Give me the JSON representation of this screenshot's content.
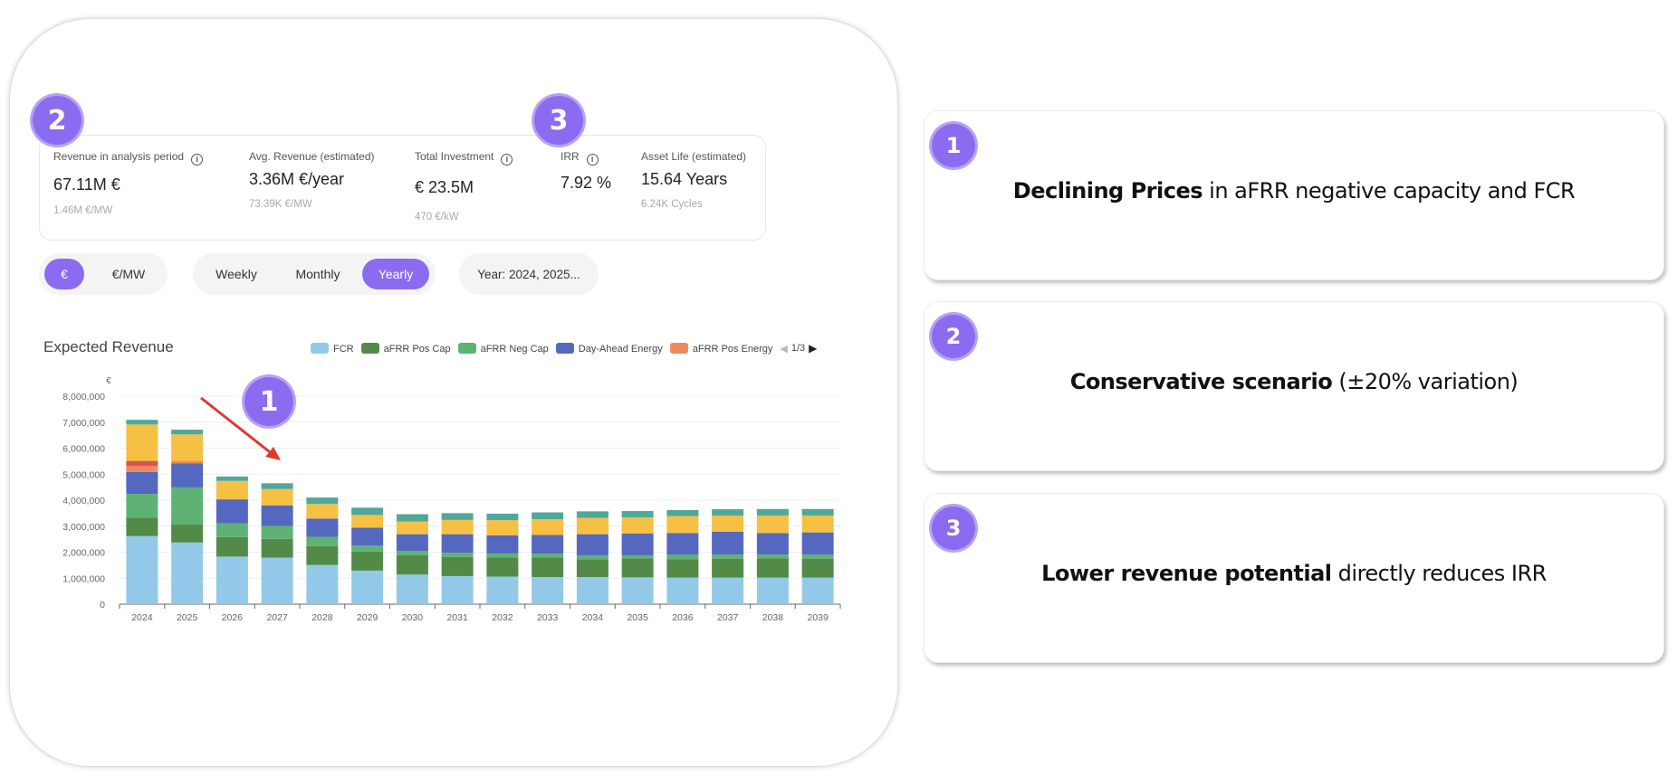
{
  "kpis": [
    {
      "label": "Revenue in analysis period",
      "info": true,
      "value": "67.11M €",
      "sub": "1.46M €/MW"
    },
    {
      "label": "Avg. Revenue (estimated)",
      "info": false,
      "value": "3.36M €/year",
      "sub": "73.39K €/MW"
    },
    {
      "label": "Total Investment",
      "info": true,
      "value": "€ 23.5M",
      "sub": "470 €/kW"
    },
    {
      "label": "IRR",
      "info": true,
      "value": "7.92 %",
      "sub": ""
    },
    {
      "label": "Asset Life (estimated)",
      "info": false,
      "value": "15.64 Years",
      "sub": "6.24K Cycles"
    }
  ],
  "unit_toggle": {
    "options": [
      "€",
      "€/MW"
    ],
    "selected": "€"
  },
  "period_toggle": {
    "options": [
      "Weekly",
      "Monthly",
      "Yearly"
    ],
    "selected": "Yearly"
  },
  "year_filter": "Year: 2024, 2025...",
  "badges": {
    "kpi": "2",
    "irr": "3",
    "chart": "1"
  },
  "legend_page": "1/3",
  "accent": "#8b6cf0",
  "arrow_color": "#e03a2e",
  "chart_data": {
    "type": "bar",
    "stacked": true,
    "title": "Expected Revenue",
    "ylabel": "€",
    "xlabel": "",
    "ylim": [
      0,
      8000000
    ],
    "yticks": [
      "0",
      "1,000,000",
      "2,000,000",
      "3,000,000",
      "4,000,000",
      "5,000,000",
      "6,000,000",
      "7,000,000",
      "8,000,000"
    ],
    "grid": true,
    "legend_placement": "top-right",
    "categories": [
      "2024",
      "2025",
      "2026",
      "2027",
      "2028",
      "2029",
      "2030",
      "2031",
      "2032",
      "2033",
      "2034",
      "2035",
      "2036",
      "2037",
      "2038",
      "2039"
    ],
    "series": [
      {
        "name": "FCR",
        "color": "#93c9e8",
        "values": [
          2620000,
          2370000,
          1830000,
          1790000,
          1510000,
          1290000,
          1140000,
          1080000,
          1060000,
          1040000,
          1040000,
          1030000,
          1020000,
          1020000,
          1020000,
          1020000
        ]
      },
      {
        "name": "aFRR Pos Cap",
        "color": "#548a48",
        "values": [
          700000,
          690000,
          750000,
          720000,
          720000,
          730000,
          740000,
          740000,
          730000,
          750000,
          690000,
          730000,
          700000,
          730000,
          740000,
          730000
        ]
      },
      {
        "name": "aFRR Neg Cap",
        "color": "#5eb274",
        "values": [
          920000,
          1430000,
          530000,
          500000,
          360000,
          230000,
          170000,
          160000,
          160000,
          150000,
          150000,
          120000,
          180000,
          160000,
          150000,
          160000
        ]
      },
      {
        "name": "Day-Ahead Energy",
        "color": "#5568c0",
        "values": [
          840000,
          930000,
          920000,
          790000,
          700000,
          690000,
          640000,
          710000,
          700000,
          720000,
          810000,
          840000,
          830000,
          880000,
          820000,
          850000
        ]
      },
      {
        "name": "aFRR Pos Energy",
        "color": "#ee8a5c",
        "values": [
          230000,
          90000,
          0,
          0,
          0,
          0,
          0,
          0,
          0,
          0,
          0,
          0,
          0,
          0,
          0,
          0
        ]
      },
      {
        "color": "#d9534f",
        "values": [
          200000,
          0,
          0,
          0,
          0,
          0,
          0,
          0,
          0,
          0,
          0,
          0,
          0,
          0,
          0,
          0
        ]
      },
      {
        "color": "#f5c043",
        "values": [
          1400000,
          1020000,
          710000,
          630000,
          560000,
          490000,
          490000,
          550000,
          580000,
          610000,
          630000,
          620000,
          660000,
          620000,
          680000,
          650000
        ]
      },
      {
        "color": "#4fa89a",
        "values": [
          180000,
          180000,
          170000,
          220000,
          250000,
          280000,
          280000,
          260000,
          250000,
          260000,
          250000,
          240000,
          230000,
          240000,
          250000,
          250000
        ]
      }
    ]
  },
  "cards": [
    {
      "number": "1",
      "bold": "Declining Prices",
      "rest": " in aFRR negative capacity and FCR"
    },
    {
      "number": "2",
      "bold": "Conservative scenario",
      "rest": " (±20% variation)"
    },
    {
      "number": "3",
      "bold": "Lower revenue potential",
      "rest": " directly reduces IRR"
    }
  ]
}
